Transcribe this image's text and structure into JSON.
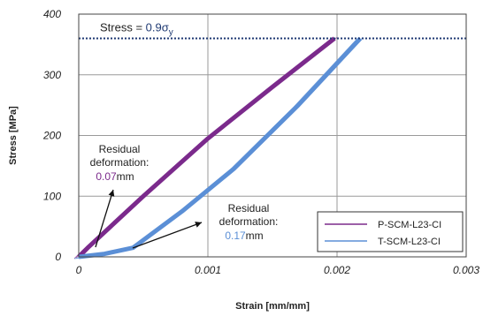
{
  "chart_data": {
    "type": "line",
    "xlabel": "Strain [mm/mm]",
    "ylabel": "Stress [MPa]",
    "xlim": [
      0,
      0.003
    ],
    "ylim": [
      0,
      400
    ],
    "x_ticks": [
      "0",
      "0.001",
      "0.002",
      "0.003"
    ],
    "y_ticks": [
      "0",
      "100",
      "200",
      "300",
      "400"
    ],
    "grid": true,
    "legend_position": "bottom-right",
    "reference_line": {
      "y": 360,
      "label_prefix": "Stress = ",
      "label_value": "0.9σ",
      "label_sub": "y",
      "color": "#1f3a73"
    },
    "series": [
      {
        "name": "P-SCM-L23-CI",
        "color": "#7b2a8c",
        "residual_strain": 7e-05,
        "peak_strain": 0.00198,
        "peak_stress": 360,
        "x": [
          0,
          7e-05,
          0.0005,
          0.001,
          0.0015,
          0.00198
        ],
        "y": [
          0,
          15,
          100,
          195,
          280,
          360
        ]
      },
      {
        "name": "T-SCM-L23-CI",
        "color": "#5b8fd6",
        "residual_strain": 0.00017,
        "peak_strain": 0.00218,
        "peak_stress": 360,
        "x": [
          0,
          0.0002,
          0.00042,
          0.0008,
          0.0012,
          0.0017,
          0.00218
        ],
        "y": [
          0,
          5,
          15,
          75,
          145,
          250,
          360
        ]
      }
    ],
    "annotations": [
      {
        "line1": "Residual",
        "line2": "deformation:",
        "value": "0.07",
        "unit": "mm",
        "value_color": "#7b2a8c"
      },
      {
        "line1": "Residual",
        "line2": "deformation:",
        "value": "0.17",
        "unit": "mm",
        "value_color": "#5b8fd6"
      }
    ]
  }
}
